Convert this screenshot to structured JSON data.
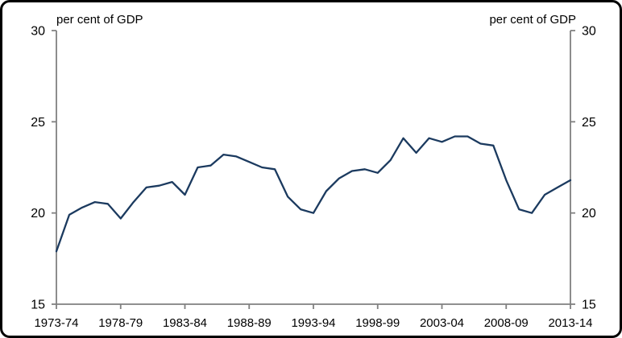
{
  "chart_data": {
    "type": "line",
    "title": "",
    "ylabel_left": "per cent of GDP",
    "ylabel_right": "per cent of GDP",
    "ylim": [
      15,
      30
    ],
    "yticks": [
      15,
      20,
      25,
      30
    ],
    "xtick_every": 5,
    "xtick_labels": [
      "1973-74",
      "1978-79",
      "1983-84",
      "1988-89",
      "1993-94",
      "1998-99",
      "2003-04",
      "2008-09",
      "2013-14"
    ],
    "grid": false,
    "legend": "none",
    "categories": [
      "1973-74",
      "1974-75",
      "1975-76",
      "1976-77",
      "1977-78",
      "1978-79",
      "1979-80",
      "1980-81",
      "1981-82",
      "1982-83",
      "1983-84",
      "1984-85",
      "1985-86",
      "1986-87",
      "1987-88",
      "1988-89",
      "1989-90",
      "1990-91",
      "1991-92",
      "1992-93",
      "1993-94",
      "1994-95",
      "1995-96",
      "1996-97",
      "1997-98",
      "1998-99",
      "1999-00",
      "2000-01",
      "2001-02",
      "2002-03",
      "2003-04",
      "2004-05",
      "2005-06",
      "2006-07",
      "2007-08",
      "2008-09",
      "2009-10",
      "2010-11",
      "2011-12",
      "2012-13",
      "2013-14"
    ],
    "series": [
      {
        "name": "per cent of GDP",
        "color": "#1b3a5f",
        "values": [
          17.9,
          19.9,
          20.3,
          20.6,
          20.5,
          19.7,
          20.6,
          21.4,
          21.5,
          21.7,
          21.0,
          22.5,
          22.6,
          23.2,
          23.1,
          22.8,
          22.5,
          22.4,
          20.9,
          20.2,
          20.0,
          21.2,
          21.9,
          22.3,
          22.4,
          22.2,
          22.9,
          24.1,
          23.3,
          24.1,
          23.9,
          24.2,
          24.2,
          23.8,
          23.7,
          21.8,
          20.2,
          20.0,
          21.0,
          21.4,
          21.8
        ]
      }
    ],
    "axis_color": "#808080",
    "text_color": "#000000",
    "frame_border_color": "#000000"
  }
}
